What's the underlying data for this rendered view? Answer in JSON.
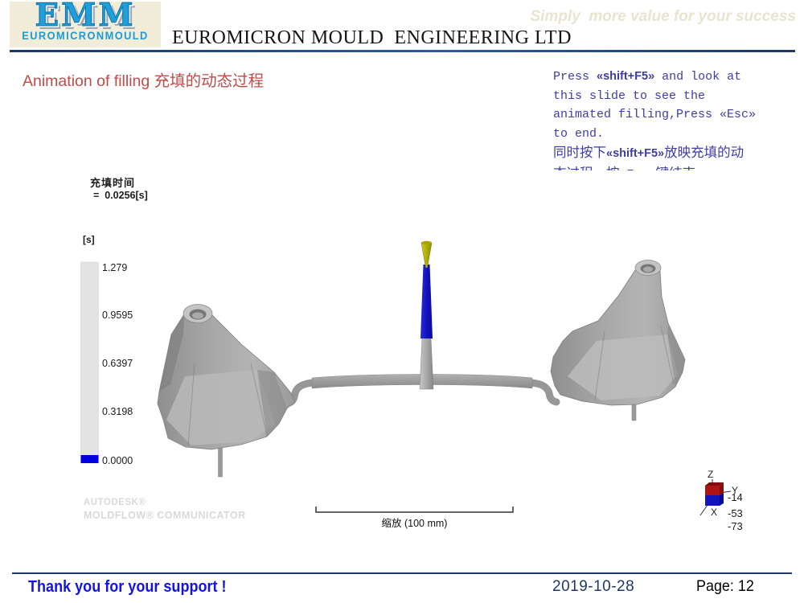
{
  "header": {
    "logo_acronym": "EMM",
    "logo_name": "EUROMICRONMOULD",
    "company_title": "EUROMICRON MOULD  ENGINEERING LTD",
    "slogan": "Simply  more value for your success",
    "brand_color": "#1FA0DB"
  },
  "heading": {
    "text": "Animation of filling  充填的动态过程",
    "color": "#BE4B48"
  },
  "instructions": {
    "color": "#3D3DA3",
    "lines": [
      [
        {
          "t": "Press ",
          "b": false
        },
        {
          "t": "«shift+F5»",
          "b": true
        },
        {
          "t": " and look at",
          "b": false
        }
      ],
      [
        {
          "t": "this slide to see the",
          "b": false
        }
      ],
      [
        {
          "t": "animated filling,Press ",
          "b": false
        },
        {
          "t": "«Esc»",
          "b": false
        }
      ],
      [
        {
          "t": "to end.",
          "b": false
        }
      ],
      [
        {
          "t": "同时按下",
          "b": false,
          "zh": true
        },
        {
          "t": "«shift+F5»",
          "b": true
        },
        {
          "t": "放映充填的动",
          "b": false,
          "zh": true
        }
      ],
      [
        {
          "t": "态过程，按",
          "b": false,
          "zh": true
        },
        {
          "t": "«Esc»",
          "b": false
        },
        {
          "t": "键结束",
          "b": false,
          "zh": true
        }
      ]
    ]
  },
  "viewer": {
    "legend_title": "充填时间",
    "legend_value": "=  0.0256[s]",
    "unit": "[s]",
    "ticks": [
      "1.279",
      "0.9595",
      "0.6397",
      "0.3198",
      "0.0000"
    ],
    "bar_color": "#E3E3E3",
    "filled_color": "#0000DE",
    "model_gray": "#9C9C9C",
    "sprue_blue": "#1515C8",
    "gate_yellow": "#C9C400",
    "watermark_line1": "AUTODESK®",
    "watermark_line2": "MOLDFLOW® COMMUNICATOR",
    "scale_label": "缩放 (100 mm)",
    "triad": {
      "z": "Z",
      "y": "Y",
      "x": "X",
      "values": [
        "-14",
        "-53",
        "-73"
      ]
    }
  },
  "footer": {
    "thanks": "Thank you for your support !",
    "date": "2019-10-28",
    "page": "Page: 12"
  }
}
